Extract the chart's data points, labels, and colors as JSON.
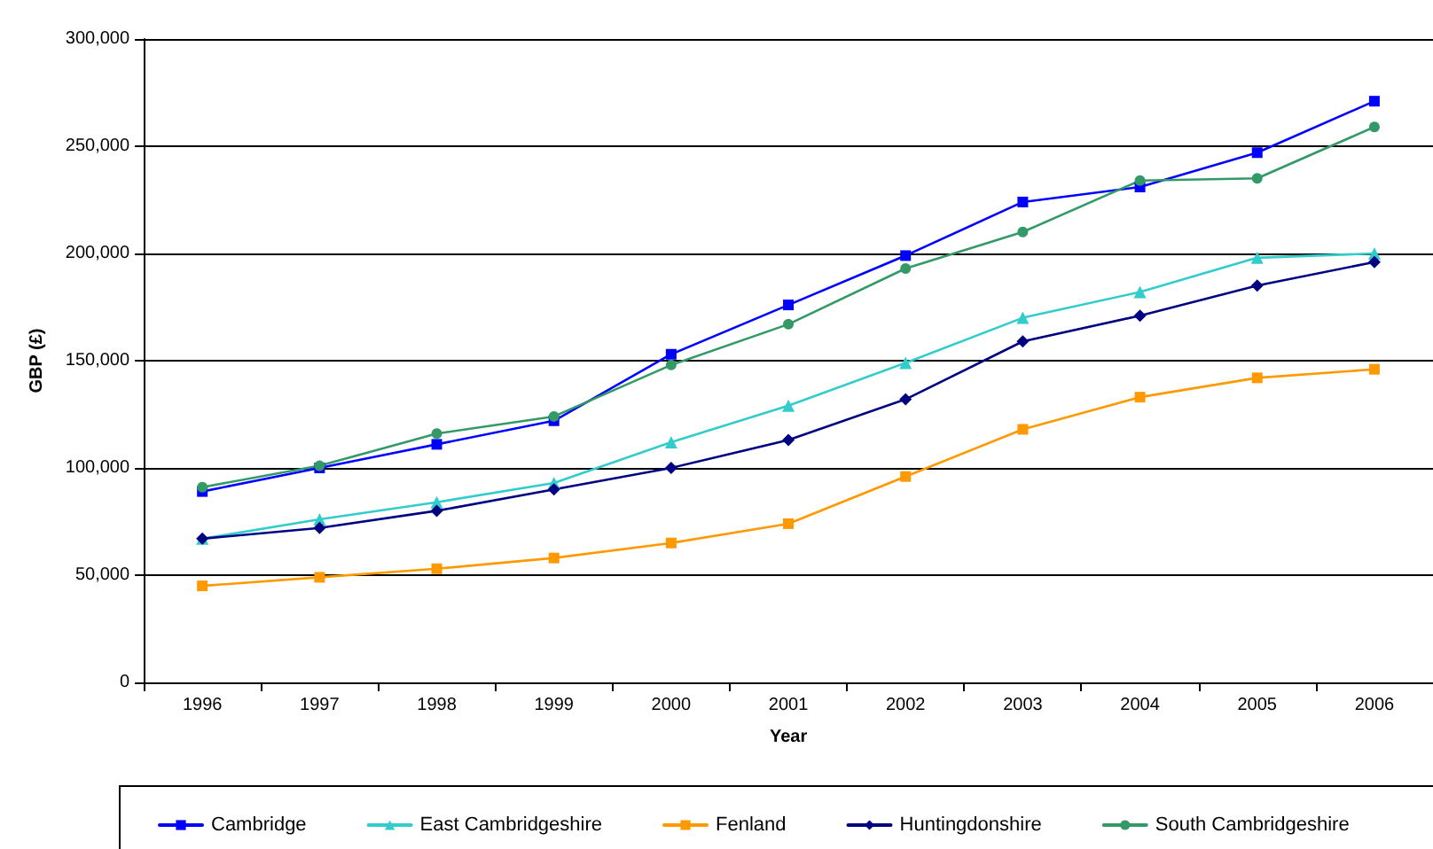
{
  "chart_data": {
    "type": "line",
    "xlabel": "Year",
    "ylabel": "GBP (£)",
    "categories": [
      "1996",
      "1997",
      "1998",
      "1999",
      "2000",
      "2001",
      "2002",
      "2003",
      "2004",
      "2005",
      "2006"
    ],
    "series": [
      {
        "name": "Cambridge",
        "color": "#0000ff",
        "marker": "square",
        "values": [
          89000,
          100000,
          111000,
          122000,
          153000,
          176000,
          199000,
          224000,
          231000,
          247000,
          271000
        ]
      },
      {
        "name": "East Cambridgeshire",
        "color": "#33cccc",
        "marker": "triangle",
        "values": [
          67000,
          76000,
          84000,
          93000,
          112000,
          129000,
          149000,
          170000,
          182000,
          198000,
          200000
        ]
      },
      {
        "name": "Fenland",
        "color": "#ff9900",
        "marker": "square",
        "values": [
          45000,
          49000,
          53000,
          58000,
          65000,
          74000,
          96000,
          118000,
          133000,
          142000,
          146000
        ]
      },
      {
        "name": "Huntingdonshire",
        "color": "#000080",
        "marker": "diamond",
        "values": [
          67000,
          72000,
          80000,
          90000,
          100000,
          113000,
          132000,
          159000,
          171000,
          185000,
          196000
        ]
      },
      {
        "name": "South Cambridgeshire",
        "color": "#339966",
        "marker": "circle",
        "values": [
          91000,
          101000,
          116000,
          124000,
          148000,
          167000,
          193000,
          210000,
          234000,
          235000,
          259000
        ]
      }
    ],
    "ylim": [
      0,
      300000
    ],
    "yticks": [
      0,
      {
        "value": 50000,
        "label": "50,000"
      },
      {
        "value": 100000,
        "label": "100,000"
      },
      {
        "value": 150000,
        "label": "150,000"
      },
      {
        "value": 200000,
        "label": "200,000"
      },
      {
        "value": 250000,
        "label": "250,000"
      },
      {
        "value": 300000,
        "label": "300,000"
      }
    ],
    "grid": "y",
    "legend": "bottom",
    "line_style": "solid"
  }
}
